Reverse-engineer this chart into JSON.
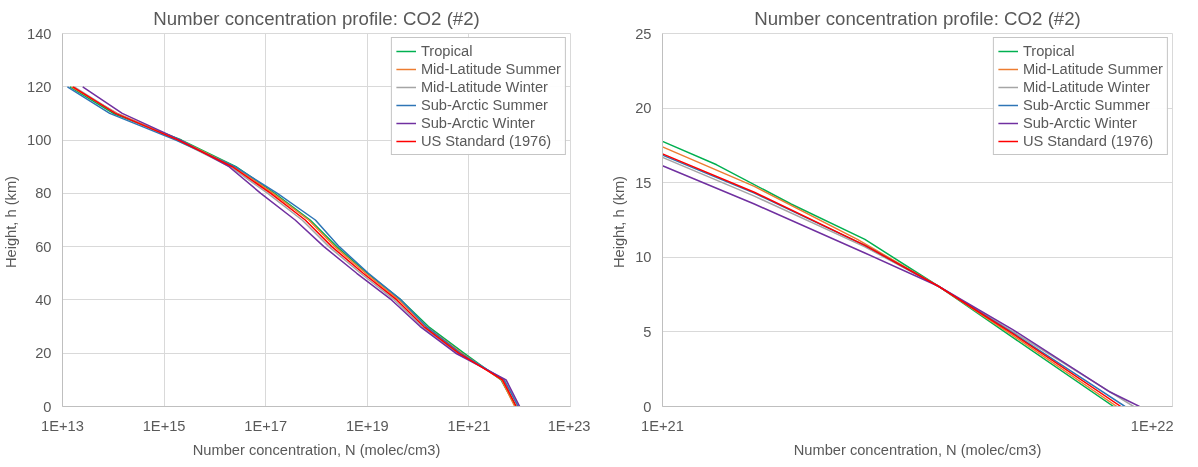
{
  "chart_data": [
    {
      "type": "line",
      "title": "Number concentration profile: CO2 (#2)",
      "xlabel": "Number concentration, N (molec/cm3)",
      "ylabel": "Height,  h (km)",
      "log": "x",
      "grid": true,
      "legend": "top right",
      "xlim": [
        10000000000000.0,
        1e+23
      ],
      "xticks": [
        {
          "value": 10000000000000.0,
          "label": "1E+13"
        },
        {
          "value": 1000000000000000.0,
          "label": "1E+15"
        },
        {
          "value": 1e+17,
          "label": "1E+17"
        },
        {
          "value": 1e+19,
          "label": "1E+19"
        },
        {
          "value": 1e+21,
          "label": "1E+21"
        },
        {
          "value": 1e+23,
          "label": "1E+23"
        }
      ],
      "ylim": [
        0,
        140
      ],
      "yticks": [
        0,
        20,
        40,
        60,
        80,
        100,
        120,
        140
      ],
      "series": [
        {
          "name": "Tropical",
          "color": "#00b050",
          "x": [
            8.3e+21,
            4.3e+21,
            8e+20,
            1.6e+20,
            4.6e+19,
            1e+19,
            2.5e+18,
            7.5e+17,
            1.5e+17,
            2.6e+16,
            2200000000000000.0,
            100000000000000.0,
            14000000000000.0
          ],
          "values": [
            0,
            10,
            20,
            30,
            40,
            50,
            60,
            70,
            80,
            90,
            100,
            110,
            120
          ]
        },
        {
          "name": "Mid-Latitude Summer",
          "color": "#ed7d31",
          "x": [
            8e+21,
            4.4e+21,
            7.2e+20,
            1.45e+20,
            4.2e+19,
            9.3e+18,
            2.3e+18,
            7e+17,
            1.4e+17,
            2.4e+16,
            2050000000000000.0,
            120000000000000.0,
            15000000000000.0
          ],
          "values": [
            0,
            10,
            20,
            30,
            40,
            50,
            60,
            70,
            80,
            90,
            100,
            110,
            120
          ]
        },
        {
          "name": "Mid-Latitude Winter",
          "color": "#a5a5a5",
          "x": [
            9.6e+21,
            5e+21,
            6e+20,
            1.2e+20,
            3.4e+19,
            7.4e+18,
            1.75e+18,
            5.2e+17,
            1.1e+17,
            2e+16,
            1800000000000000.0,
            115000000000000.0,
            17000000000000.0
          ],
          "values": [
            0,
            10,
            20,
            30,
            40,
            50,
            60,
            70,
            80,
            90,
            100,
            110,
            120
          ]
        },
        {
          "name": "Sub-Arctic Summer",
          "color": "#2e75b6",
          "x": [
            9.3e+21,
            4.9e+21,
            6.8e+20,
            1.45e+20,
            4.6e+19,
            1.05e+19,
            2.8e+18,
            9.5e+17,
            1.7e+17,
            2.5e+16,
            1700000000000000.0,
            85000000000000.0,
            12500000000000.0
          ],
          "values": [
            0,
            10,
            20,
            30,
            40,
            50,
            60,
            70,
            80,
            90,
            100,
            110,
            120
          ]
        },
        {
          "name": "Sub-Arctic Winter",
          "color": "#7030a0",
          "x": [
            1e+22,
            5.4e+21,
            5.5e+20,
            1.1e+20,
            3e+19,
            6.2e+18,
            1.4e+18,
            3.8e+17,
            8e+16,
            1.9e+16,
            2100000000000000.0,
            150000000000000.0,
            25000000000000.0
          ],
          "values": [
            0,
            10,
            20,
            30,
            40,
            50,
            60,
            70,
            80,
            90,
            100,
            110,
            120
          ]
        },
        {
          "name": "US Standard (1976)",
          "color": "#ff0000",
          "x": [
            8.6e+21,
            4.6e+21,
            6.3e+20,
            1.3e+20,
            3.8e+19,
            8.3e+18,
            2e+18,
            6e+17,
            1.26e+17,
            2.2e+16,
            1900000000000000.0,
            110000000000000.0,
            16000000000000.0
          ],
          "values": [
            0,
            10,
            20,
            30,
            40,
            50,
            60,
            70,
            80,
            90,
            100,
            110,
            120
          ]
        }
      ]
    },
    {
      "type": "line",
      "title": "Number concentration profile: CO2 (#2)",
      "xlabel": "Number concentration, N (molec/cm3)",
      "ylabel": "Height,  h (km)",
      "log": "x",
      "grid": "y",
      "legend": "top right",
      "xlim": [
        1e+21,
        1.1e+22
      ],
      "xticks": [
        {
          "value": 1e+21,
          "label": "1E+21"
        },
        {
          "value": 1e+22,
          "label": "1E+22"
        }
      ],
      "ylim": [
        0,
        25
      ],
      "yticks": [
        0,
        5,
        10,
        15,
        20,
        25
      ],
      "series": [
        {
          "name": "Tropical",
          "color": "#00b050",
          "x": [
            8.34e+21,
            5.18e+21,
            3.66e+21,
            2.59e+21,
            1.83e+21,
            1.29e+21,
            1e+21
          ],
          "values": [
            0,
            4.65,
            8.06,
            11.2,
            13.57,
            16.2,
            17.77
          ]
        },
        {
          "name": "Mid-Latitude Summer",
          "color": "#ed7d31",
          "x": [
            8.47e+21,
            5.18e+21,
            3.66e+21,
            2.5e+21,
            1.54e+21,
            1e+21
          ],
          "values": [
            0,
            4.78,
            8.06,
            11.2,
            14.75,
            17.4
          ]
        },
        {
          "name": "Mid-Latitude Winter",
          "color": "#a5a5a5",
          "x": [
            9.16e+21,
            5.18e+21,
            3.66e+21,
            2.59e+21,
            1.54e+21,
            1e+21
          ],
          "values": [
            0,
            5.04,
            8.06,
            10.7,
            14.1,
            16.7
          ]
        },
        {
          "name": "Sub-Arctic Summer",
          "color": "#2e75b6",
          "x": [
            8.8e+21,
            5.18e+21,
            3.66e+21,
            2.59e+21,
            1.54e+21,
            1e+21
          ],
          "values": [
            0,
            4.95,
            8.06,
            10.8,
            14.3,
            16.85
          ]
        },
        {
          "name": "Sub-Arctic Winter",
          "color": "#7030a0",
          "x": [
            9.42e+21,
            8.2e+21,
            5.18e+21,
            3.66e+21,
            2.59e+21,
            1.54e+21,
            1e+21
          ],
          "values": [
            0,
            0.97,
            5.17,
            8.06,
            10.29,
            13.57,
            16.14
          ]
        },
        {
          "name": "US Standard (1976)",
          "color": "#ff0000",
          "x": [
            8.63e+21,
            5.18e+21,
            3.66e+21,
            2.59e+21,
            1.54e+21,
            1e+21
          ],
          "values": [
            0,
            4.9,
            8.06,
            10.8,
            14.36,
            16.93
          ]
        }
      ]
    }
  ]
}
